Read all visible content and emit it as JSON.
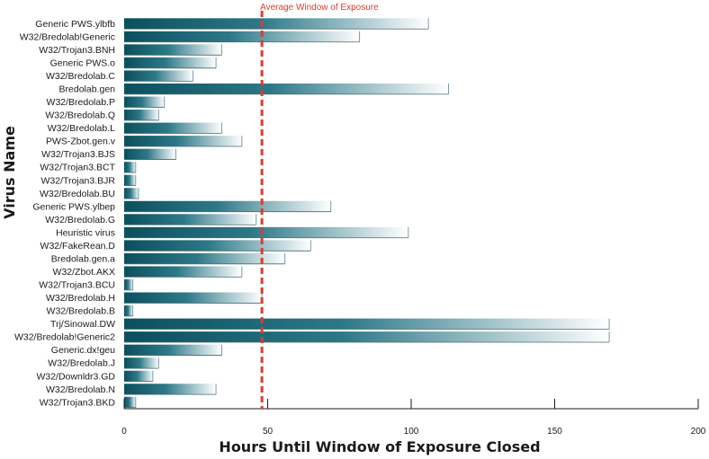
{
  "chart_data": {
    "type": "bar",
    "orientation": "horizontal",
    "xlabel": "Hours Until Window of Exposure Closed",
    "ylabel": "Virus Name",
    "xlim": [
      0,
      200
    ],
    "xticks": [
      0,
      50,
      100,
      150,
      200
    ],
    "reference_line": {
      "label": "Average Window of Exposure",
      "value": 48,
      "color": "#e03a2b"
    },
    "bar_gradient": [
      "#0b4f5e",
      "#ffffff"
    ],
    "categories": [
      "Generic PWS.ylbfb",
      "W32/Bredolab!Generic",
      "W32/Trojan3.BNH",
      "Generic PWS.o",
      "W32/Bredolab.C",
      "Bredolab.gen",
      "W32/Bredolab.P",
      "W32/Bredolab.Q",
      "W32/Bredolab.L",
      "PWS-Zbot.gen.v",
      "W32/Trojan3.BJS",
      "W32/Trojan3.BCT",
      "W32/Trojan3.BJR",
      "W32/Bredolab.BU",
      "Generic PWS.ylbep",
      "W32/Bredolab.G",
      "Heuristic virus",
      "W32/FakeRean.D",
      "Bredolab.gen.a",
      "W32/Zbot.AKX",
      "W32/Trojan3.BCU",
      "W32/Bredolab.H",
      "W32/Bredolab.B",
      "Trj/Sinowal.DW",
      "W32/Bredolab!Generic2",
      "Generic.dx!geu",
      "W32/Bredolab.J",
      "W32/Downldr3.GD",
      "W32/Bredolab.N",
      "W32/Trojan3.BKD"
    ],
    "values": [
      106,
      82,
      34,
      32,
      24,
      113,
      14,
      12,
      34,
      41,
      18,
      4,
      4,
      5,
      72,
      46,
      99,
      65,
      56,
      41,
      3,
      48,
      3,
      169,
      169,
      34,
      12,
      10,
      32,
      4
    ]
  }
}
